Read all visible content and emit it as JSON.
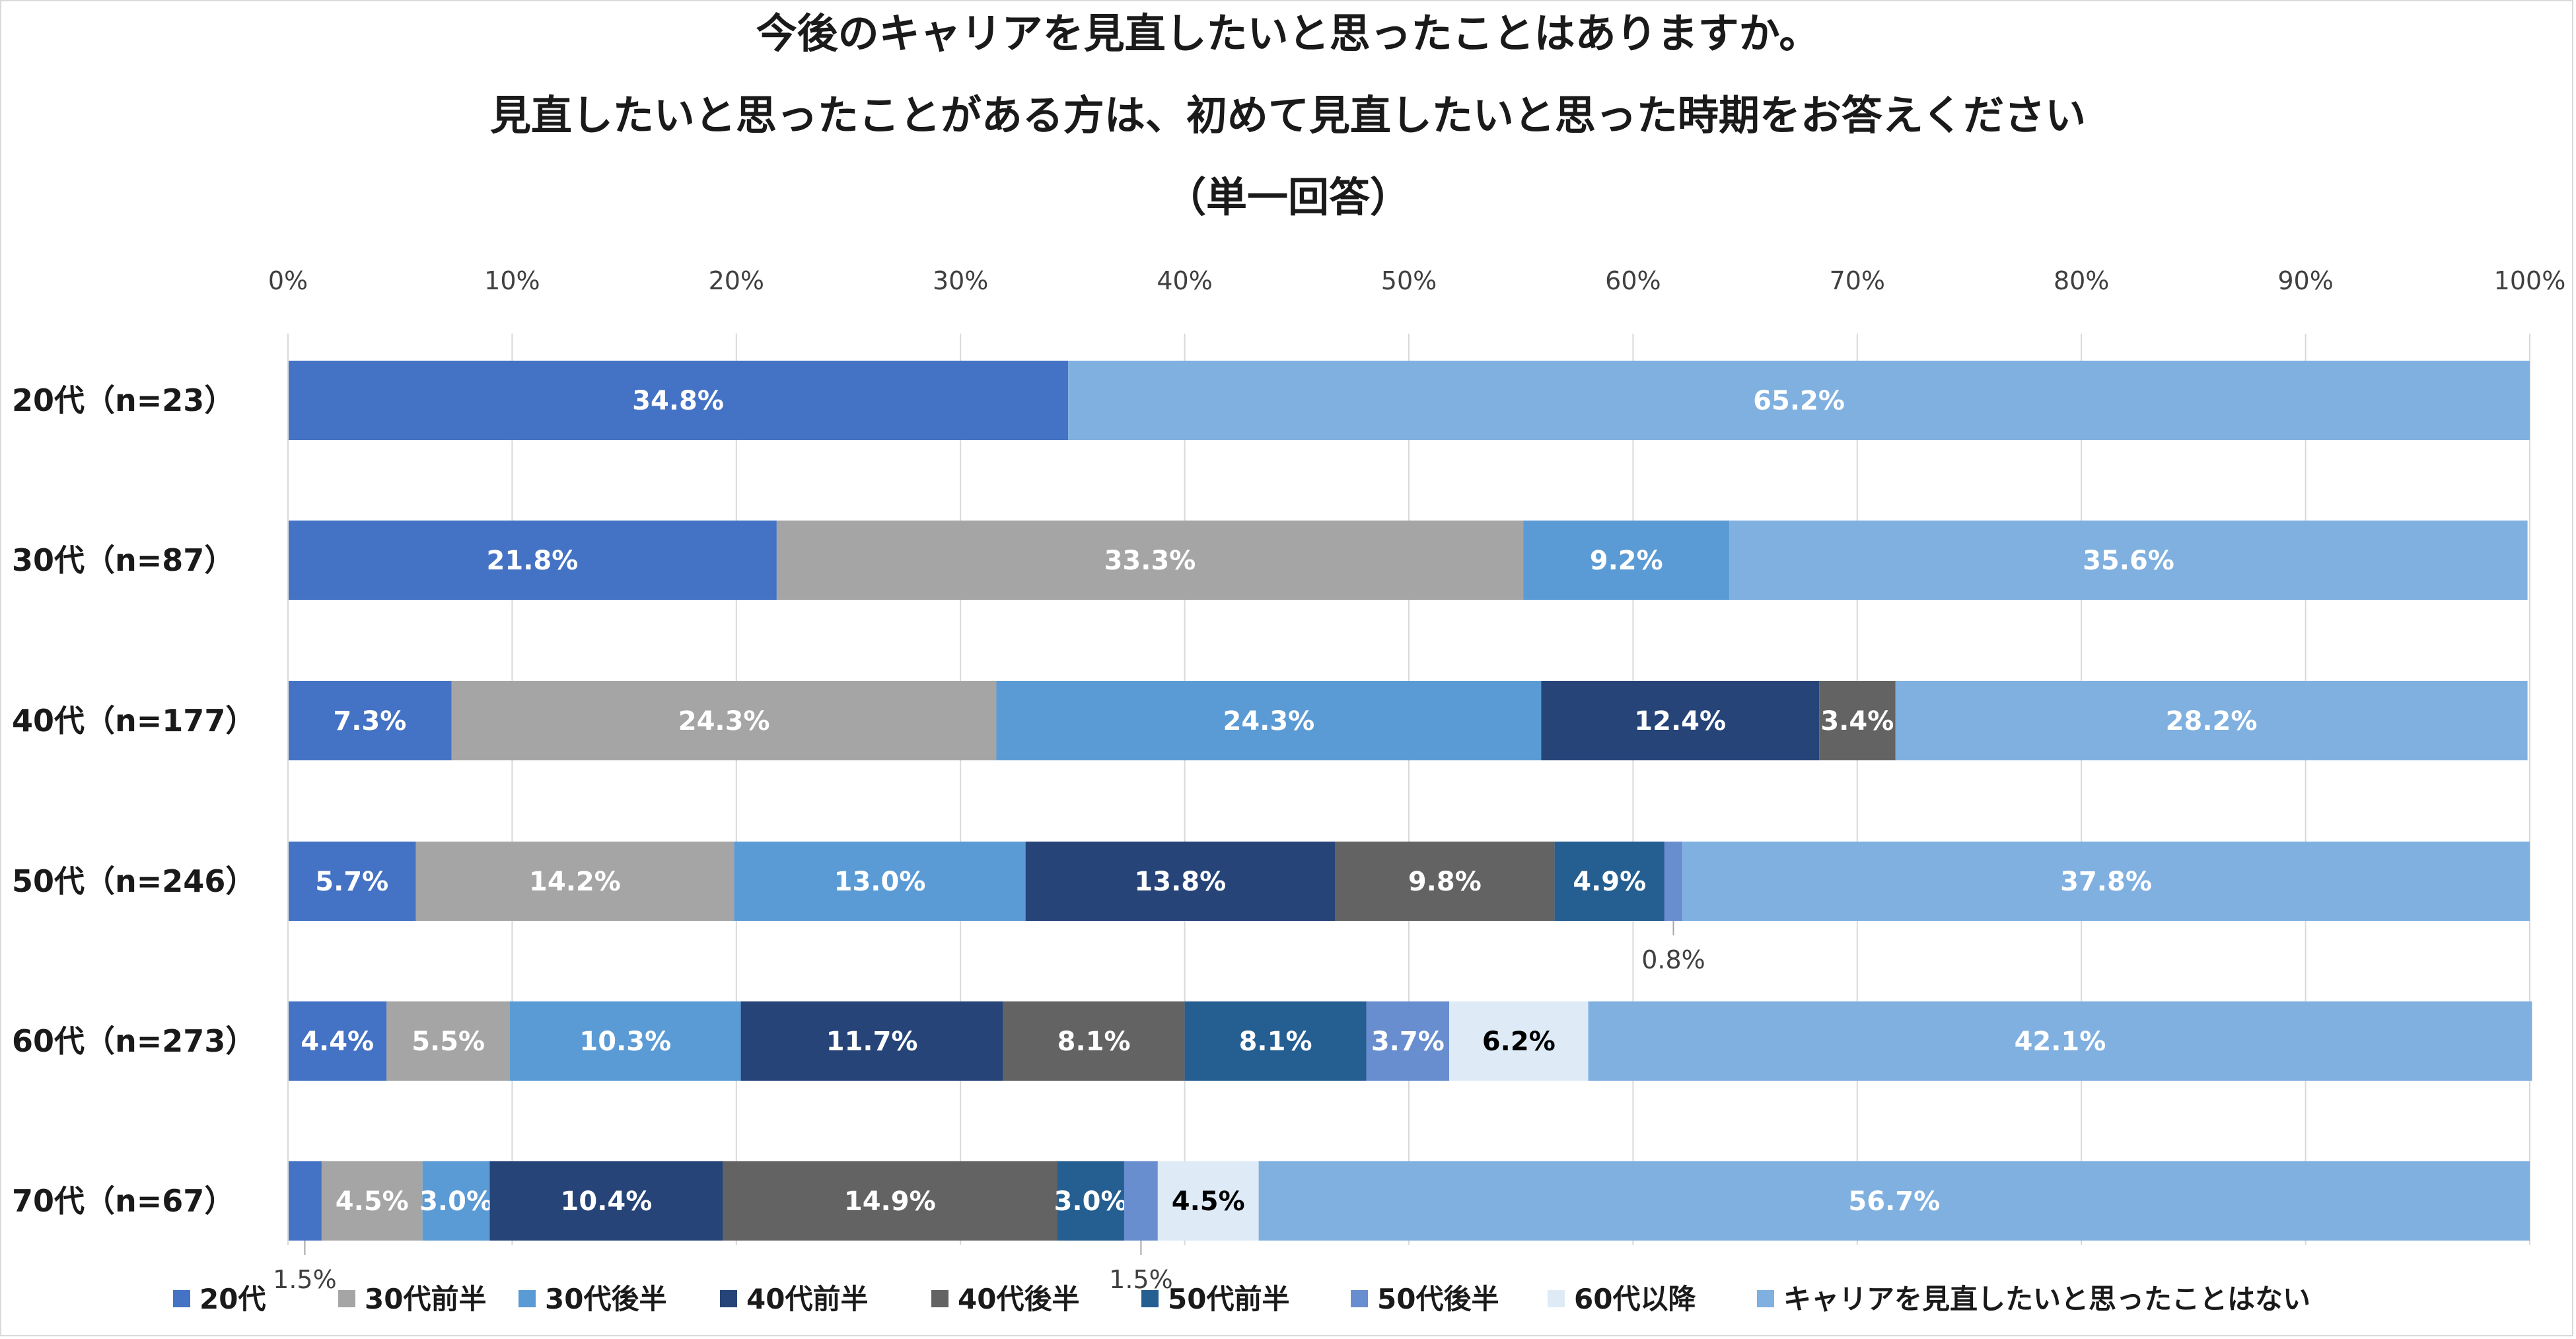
{
  "chart_data": {
    "type": "bar",
    "orientation": "horizontal",
    "stacked": "percent",
    "title_lines": [
      "今後のキャリアを見直したいと思ったことはありますか。",
      "見直したいと思ったことがある方は、初めて見直したいと思った時期をお答えください",
      "（単一回答）"
    ],
    "xlim": [
      0,
      100
    ],
    "x_ticks": [
      "0%",
      "10%",
      "20%",
      "30%",
      "40%",
      "50%",
      "60%",
      "70%",
      "80%",
      "90%",
      "100%"
    ],
    "grid": true,
    "legend_position": "bottom",
    "categories": [
      "20代（n=23）",
      "30代（n=87）",
      "40代（n=177）",
      "50代（n=246）",
      "60代（n=273）",
      "70代（n=67）"
    ],
    "series": [
      {
        "name": "20代",
        "color": "#4472C4",
        "label_color": "#FFFFFF",
        "values": [
          34.8,
          21.8,
          7.3,
          5.7,
          4.4,
          1.5
        ]
      },
      {
        "name": "30代前半",
        "color": "#A5A5A5",
        "label_color": "#FFFFFF",
        "values": [
          null,
          33.3,
          24.3,
          14.2,
          5.5,
          4.5
        ]
      },
      {
        "name": "30代後半",
        "color": "#5B9BD5",
        "label_color": "#FFFFFF",
        "values": [
          null,
          9.2,
          24.3,
          13.0,
          10.3,
          3.0
        ]
      },
      {
        "name": "40代前半",
        "color": "#264478",
        "label_color": "#FFFFFF",
        "values": [
          null,
          null,
          12.4,
          13.8,
          11.7,
          10.4
        ]
      },
      {
        "name": "40代後半",
        "color": "#636363",
        "label_color": "#FFFFFF",
        "values": [
          null,
          null,
          3.4,
          9.8,
          8.1,
          14.9
        ]
      },
      {
        "name": "50代前半",
        "color": "#255E91",
        "label_color": "#FFFFFF",
        "values": [
          null,
          null,
          null,
          4.9,
          8.1,
          3.0
        ]
      },
      {
        "name": "50代後半",
        "color": "#698ED0",
        "label_color": "#FFFFFF",
        "values": [
          null,
          null,
          null,
          0.8,
          3.7,
          1.5
        ]
      },
      {
        "name": "60代以降",
        "color": "#DEEBF7",
        "label_color": "#000000",
        "values": [
          null,
          null,
          null,
          null,
          6.2,
          4.5
        ]
      },
      {
        "name": "キャリアを見直したいと思ったことはない",
        "color": "#7FB0E0",
        "label_color": "#FFFFFF",
        "values": [
          65.2,
          35.6,
          28.2,
          37.8,
          42.1,
          56.7
        ]
      }
    ],
    "data_labels": [
      [
        {
          "text": "34.8%"
        },
        null,
        null,
        null,
        null,
        null,
        null,
        null,
        {
          "text": "65.2%"
        }
      ],
      [
        {
          "text": "21.8%"
        },
        {
          "text": "33.3%"
        },
        {
          "text": "9.2%"
        },
        null,
        null,
        null,
        null,
        null,
        {
          "text": "35.6%"
        }
      ],
      [
        {
          "text": "7.3%"
        },
        {
          "text": "24.3%"
        },
        {
          "text": "24.3%"
        },
        {
          "text": "12.4%"
        },
        {
          "text": "3.4%"
        },
        null,
        null,
        null,
        {
          "text": "28.2%"
        }
      ],
      [
        {
          "text": "5.7%"
        },
        {
          "text": "14.2%"
        },
        {
          "text": "13.0%"
        },
        {
          "text": "13.8%"
        },
        {
          "text": "9.8%"
        },
        {
          "text": "4.9%"
        },
        {
          "text": "0.8%",
          "callout": "below"
        },
        null,
        {
          "text": "37.8%"
        }
      ],
      [
        {
          "text": "4.4%"
        },
        {
          "text": "5.5%"
        },
        {
          "text": "10.3%"
        },
        {
          "text": "11.7%"
        },
        {
          "text": "8.1%"
        },
        {
          "text": "8.1%"
        },
        {
          "text": "3.7%"
        },
        {
          "text": "6.2%"
        },
        {
          "text": "42.1%"
        }
      ],
      [
        {
          "text": "1.5%",
          "callout": "below"
        },
        {
          "text": "4.5%"
        },
        {
          "text": "3.0%"
        },
        {
          "text": "10.4%"
        },
        {
          "text": "14.9%"
        },
        {
          "text": "3.0%"
        },
        {
          "text": "1.5%",
          "callout": "below"
        },
        {
          "text": "4.5%"
        },
        {
          "text": "56.7%"
        }
      ]
    ]
  }
}
